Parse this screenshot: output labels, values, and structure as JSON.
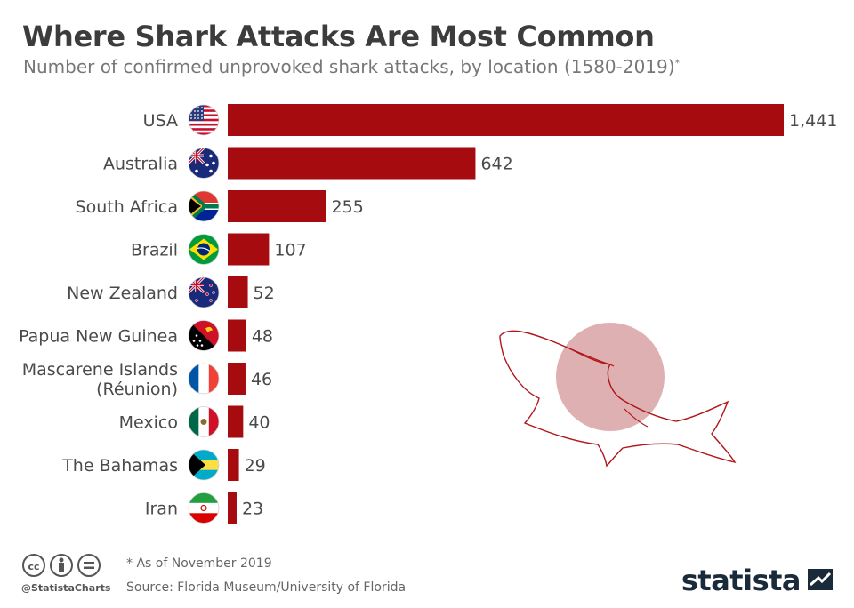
{
  "header": {
    "title": "Where Shark Attacks Are Most Common",
    "subtitle": "Number of confirmed unprovoked shark attacks, by location (1580-2019)",
    "subtitle_mark": "*"
  },
  "chart_data": {
    "type": "bar",
    "orientation": "horizontal",
    "title": "Where Shark Attacks Are Most Common",
    "subtitle": "Number of confirmed unprovoked shark attacks, by location (1580-2019)*",
    "categories": [
      "USA",
      "Australia",
      "South Africa",
      "Brazil",
      "New Zealand",
      "Papua New Guinea",
      "Mascarene Islands (Réunion)",
      "Mexico",
      "The Bahamas",
      "Iran"
    ],
    "category_lines": [
      [
        "USA"
      ],
      [
        "Australia"
      ],
      [
        "South Africa"
      ],
      [
        "Brazil"
      ],
      [
        "New Zealand"
      ],
      [
        "Papua New Guinea"
      ],
      [
        "Mascarene Islands",
        "(Réunion)"
      ],
      [
        "Mexico"
      ],
      [
        "The Bahamas"
      ],
      [
        "Iran"
      ]
    ],
    "values": [
      1441,
      642,
      255,
      107,
      52,
      48,
      46,
      40,
      29,
      23
    ],
    "value_labels": [
      "1,441",
      "642",
      "255",
      "107",
      "52",
      "48",
      "46",
      "40",
      "29",
      "23"
    ],
    "flags": [
      "usa-flag",
      "australia-flag",
      "south-africa-flag",
      "brazil-flag",
      "new-zealand-flag",
      "papua-new-guinea-flag",
      "france-flag",
      "mexico-flag",
      "bahamas-flag",
      "iran-flag"
    ],
    "xlim": [
      0,
      1441
    ],
    "bar_color": "#a50b0f",
    "grid": false,
    "legend": "none"
  },
  "footer": {
    "note": "* As of November 2019",
    "source": "Source: Florida Museum/University of Florida",
    "handle": "@StatistaCharts",
    "brand": "statista"
  },
  "colors": {
    "accent": "#a50b0f",
    "shark_outline": "#b0161a",
    "circle": "#dba7a8"
  }
}
